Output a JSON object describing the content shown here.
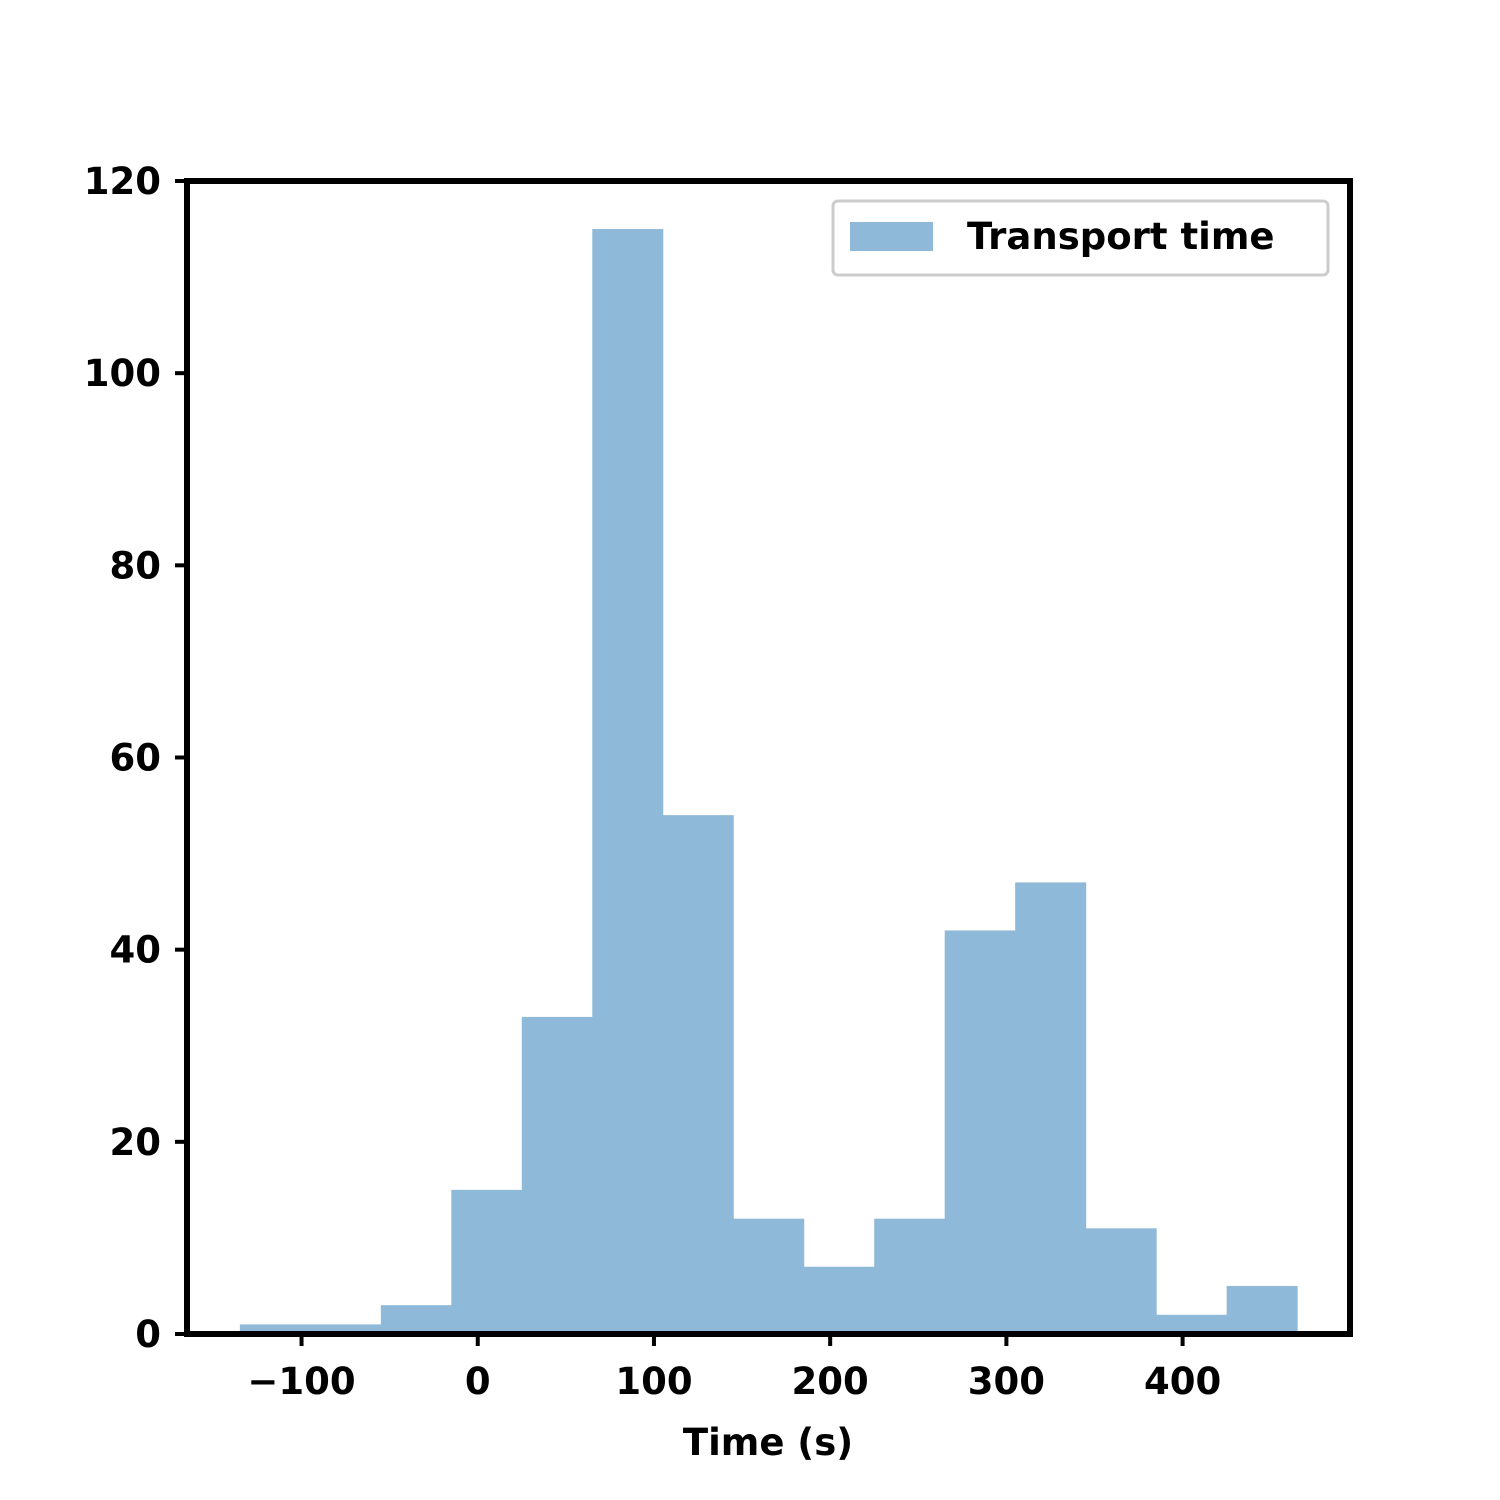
{
  "chart_data": {
    "type": "bar",
    "histogram": true,
    "bin_edges": [
      -135,
      -95,
      -55,
      -15,
      25,
      65,
      105,
      145,
      185,
      225,
      265,
      305,
      345,
      385,
      425,
      465
    ],
    "values": [
      1,
      1,
      3,
      15,
      33,
      115,
      54,
      12,
      7,
      12,
      42,
      47,
      11,
      2,
      5
    ],
    "series": [
      {
        "name": "Transport time",
        "values": [
          1,
          1,
          3,
          15,
          33,
          115,
          54,
          12,
          7,
          12,
          42,
          47,
          11,
          2,
          5
        ]
      }
    ],
    "xlabel": "Time (s)",
    "ylabel": "",
    "title": "",
    "xlim": [
      -165,
      495
    ],
    "ylim": [
      0,
      120
    ],
    "xticks": [
      -100,
      0,
      100,
      200,
      300,
      400
    ],
    "xtick_labels": [
      "−100",
      "0",
      "100",
      "200",
      "300",
      "400"
    ],
    "yticks": [
      0,
      20,
      40,
      60,
      80,
      100,
      120
    ],
    "ytick_labels": [
      "0",
      "20",
      "40",
      "60",
      "80",
      "100",
      "120"
    ],
    "legend": {
      "entries": [
        "Transport time"
      ],
      "placement": "top-right"
    },
    "grid": false,
    "colors": {
      "bar": "#8fb9d8",
      "axes": "#000000",
      "legend_border": "#cccccc"
    }
  }
}
